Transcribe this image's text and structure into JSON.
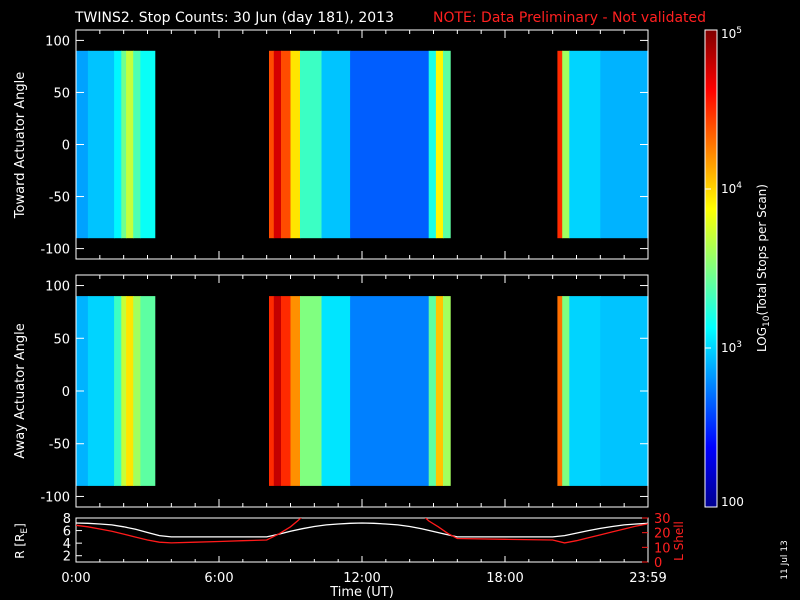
{
  "header": {
    "title": "TWINS2. Stop Counts: 30 Jun (day 181), 2013",
    "note": "NOTE: Data Preliminary - Not validated",
    "note_color": "#ff1a1a"
  },
  "footer": {
    "date_stamp": "11 Jul 13"
  },
  "chart_data": [
    {
      "type": "heatmap",
      "ylabel": "Toward Actuator Angle",
      "xlim_hours": [
        0,
        24
      ],
      "ylim": [
        -110,
        110
      ],
      "y_ticks": [
        100,
        50,
        0,
        -50,
        -100
      ],
      "data_extent_deg": [
        -90,
        90
      ],
      "valid_intervals_hours": [
        [
          0,
          3.3
        ],
        [
          8.1,
          15.7
        ],
        [
          20.2,
          24
        ]
      ],
      "bands": [
        {
          "start": 0.0,
          "end": 0.5,
          "log": 2.85
        },
        {
          "start": 0.5,
          "end": 1.6,
          "log": 2.95
        },
        {
          "start": 1.6,
          "end": 1.9,
          "log": 3.1
        },
        {
          "start": 1.9,
          "end": 2.1,
          "log": 3.45
        },
        {
          "start": 2.1,
          "end": 2.4,
          "log": 3.7
        },
        {
          "start": 2.4,
          "end": 2.7,
          "log": 3.35
        },
        {
          "start": 2.7,
          "end": 3.3,
          "log": 3.15
        },
        {
          "start": 8.1,
          "end": 8.3,
          "log": 4.4
        },
        {
          "start": 8.3,
          "end": 8.6,
          "log": 4.75
        },
        {
          "start": 8.6,
          "end": 9.0,
          "log": 4.4
        },
        {
          "start": 9.0,
          "end": 9.4,
          "log": 3.95
        },
        {
          "start": 9.4,
          "end": 10.3,
          "log": 3.3
        },
        {
          "start": 10.3,
          "end": 11.5,
          "log": 2.95
        },
        {
          "start": 11.5,
          "end": 14.8,
          "log": 2.65
        },
        {
          "start": 14.8,
          "end": 15.1,
          "log": 3.2
        },
        {
          "start": 15.1,
          "end": 15.4,
          "log": 3.9
        },
        {
          "start": 15.4,
          "end": 15.7,
          "log": 3.4
        },
        {
          "start": 20.2,
          "end": 20.4,
          "log": 4.5
        },
        {
          "start": 20.4,
          "end": 20.7,
          "log": 3.6
        },
        {
          "start": 20.7,
          "end": 22.0,
          "log": 3.0
        },
        {
          "start": 22.0,
          "end": 24.0,
          "log": 2.9
        }
      ]
    },
    {
      "type": "heatmap",
      "ylabel": "Away Actuator Angle",
      "xlim_hours": [
        0,
        24
      ],
      "ylim": [
        -110,
        110
      ],
      "y_ticks": [
        100,
        50,
        0,
        -50,
        -100
      ],
      "data_extent_deg": [
        -90,
        90
      ],
      "valid_intervals_hours": [
        [
          0,
          3.3
        ],
        [
          8.1,
          15.7
        ],
        [
          20.2,
          24
        ]
      ],
      "bands": [
        {
          "start": 0.0,
          "end": 0.5,
          "log": 2.9
        },
        {
          "start": 0.5,
          "end": 1.6,
          "log": 3.0
        },
        {
          "start": 1.6,
          "end": 1.9,
          "log": 3.3
        },
        {
          "start": 1.9,
          "end": 2.1,
          "log": 3.7
        },
        {
          "start": 2.1,
          "end": 2.4,
          "log": 3.95
        },
        {
          "start": 2.4,
          "end": 2.7,
          "log": 3.6
        },
        {
          "start": 2.7,
          "end": 3.3,
          "log": 3.4
        },
        {
          "start": 8.1,
          "end": 8.3,
          "log": 4.5
        },
        {
          "start": 8.3,
          "end": 8.6,
          "log": 4.8
        },
        {
          "start": 8.6,
          "end": 9.0,
          "log": 4.5
        },
        {
          "start": 9.0,
          "end": 9.4,
          "log": 4.2
        },
        {
          "start": 9.4,
          "end": 10.3,
          "log": 3.5
        },
        {
          "start": 10.3,
          "end": 11.5,
          "log": 3.05
        },
        {
          "start": 11.5,
          "end": 14.8,
          "log": 2.75
        },
        {
          "start": 14.8,
          "end": 15.1,
          "log": 3.4
        },
        {
          "start": 15.1,
          "end": 15.4,
          "log": 4.05
        },
        {
          "start": 15.4,
          "end": 15.7,
          "log": 3.6
        },
        {
          "start": 20.2,
          "end": 20.4,
          "log": 4.3
        },
        {
          "start": 20.4,
          "end": 20.7,
          "log": 3.5
        },
        {
          "start": 20.7,
          "end": 22.0,
          "log": 3.0
        },
        {
          "start": 22.0,
          "end": 24.0,
          "log": 2.95
        }
      ]
    },
    {
      "type": "line",
      "xlabel": "Time (UT)",
      "ylabel": "R [R",
      "ylabel_sub": "E",
      "ylabel_end": "]",
      "y2label": "L Shell",
      "x_tick_labels": [
        "0:00",
        "6:00",
        "12:00",
        "18:00",
        "23:59"
      ],
      "x_ticks_hours": [
        0,
        6,
        12,
        18,
        24
      ],
      "ylim": [
        1,
        8
      ],
      "y_ticks": [
        8,
        6,
        4,
        2
      ],
      "y2lim": [
        0,
        30
      ],
      "y2_ticks": [
        30,
        20,
        10,
        0
      ],
      "series": [
        {
          "color": "#ffffff",
          "axis": "left",
          "x": [
            0,
            0.5,
            1,
            1.5,
            2,
            2.5,
            3,
            3.5,
            4,
            8,
            8.5,
            9,
            9.5,
            10,
            10.5,
            11,
            11.5,
            12,
            12.5,
            13,
            13.5,
            14,
            14.5,
            15,
            15.5,
            16,
            20,
            20.5,
            21,
            21.5,
            22,
            22.5,
            23,
            23.5,
            24
          ],
          "y": [
            7.2,
            7.15,
            7.05,
            6.9,
            6.6,
            6.2,
            5.7,
            5.2,
            5.0,
            5.0,
            5.4,
            5.9,
            6.3,
            6.65,
            6.9,
            7.05,
            7.15,
            7.2,
            7.15,
            7.05,
            6.9,
            6.65,
            6.3,
            5.85,
            5.4,
            5.0,
            5.0,
            5.2,
            5.6,
            6.0,
            6.35,
            6.65,
            6.9,
            7.05,
            7.15
          ]
        },
        {
          "color": "#ff1a1a",
          "axis": "right",
          "x": [
            0,
            0.5,
            1,
            1.5,
            2,
            2.5,
            3,
            3.5,
            4,
            5,
            6,
            7,
            8,
            8.5,
            9,
            9.3,
            9.5,
            14.6,
            14.8,
            15.2,
            15.6,
            16,
            18,
            20,
            20.5,
            21,
            21.5,
            22,
            22.5,
            23,
            23.5,
            24
          ],
          "y": [
            25,
            24,
            22.5,
            21,
            19,
            17,
            15,
            13.5,
            13,
            13.5,
            14,
            14.5,
            15,
            19,
            24,
            28,
            31,
            31,
            28,
            24,
            19.5,
            16,
            15.5,
            15,
            13,
            14.5,
            16.5,
            18.5,
            20.5,
            22.5,
            24.5,
            26
          ]
        }
      ]
    },
    {
      "type": "colorbar",
      "label_prefix": "LOG",
      "label_sub": "10",
      "label_suffix": "(Total Stops per Scan)",
      "log_range": [
        2,
        5
      ],
      "tick_labels": [
        {
          "log": 5,
          "base": "10",
          "exp": "5"
        },
        {
          "log": 4,
          "base": "10",
          "exp": "4"
        },
        {
          "log": 3,
          "base": "10",
          "exp": "3"
        },
        {
          "log": 2,
          "base": "100",
          "exp": ""
        }
      ]
    }
  ]
}
